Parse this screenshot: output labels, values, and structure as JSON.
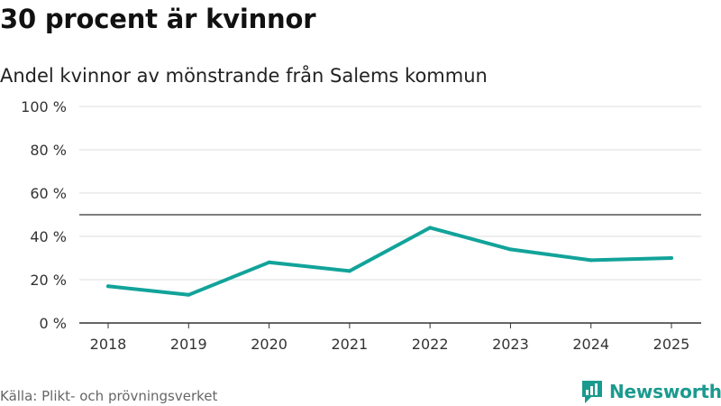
{
  "title": "30 procent är kvinnor",
  "subtitle": "Andel kvinnor av mönstrande från Salems kommun",
  "source": "Källa: Plikt- och prövningsverket",
  "brand": "Newsworthy",
  "colors": {
    "line": "#12a39a",
    "brand": "#1a9a8e",
    "grid": "#dddddd",
    "reference": "#555555"
  },
  "chart_data": {
    "type": "line",
    "title": "30 procent är kvinnor",
    "subtitle": "Andel kvinnor av mönstrande från Salems kommun",
    "xlabel": "",
    "ylabel": "",
    "x": [
      "2018",
      "2019",
      "2020",
      "2021",
      "2022",
      "2023",
      "2024",
      "2025"
    ],
    "series": [
      {
        "name": "Andel kvinnor",
        "values": [
          17,
          13,
          28,
          24,
          44,
          34,
          29,
          30
        ]
      }
    ],
    "ylim": [
      0,
      100
    ],
    "yticks": [
      0,
      20,
      40,
      60,
      80,
      100
    ],
    "ytick_labels": [
      "0 %",
      "20 %",
      "40 %",
      "60 %",
      "80 %",
      "100 %"
    ],
    "reference_line": 50,
    "grid": true
  }
}
